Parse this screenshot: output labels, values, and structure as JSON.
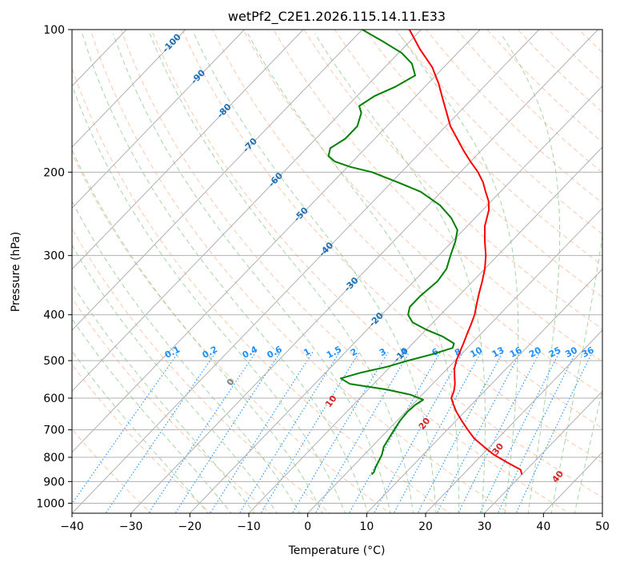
{
  "chart_data": {
    "type": "skew-t",
    "title": "wetPf2_C2E1.2026.115.14.11.E33",
    "xlabel": "Temperature (°C)",
    "ylabel": "Pressure (hPa)",
    "xlim": [
      -40,
      50
    ],
    "ylim": [
      1050,
      100
    ],
    "x_ticks": [
      -40,
      -30,
      -20,
      -10,
      0,
      10,
      20,
      30,
      40,
      50
    ],
    "y_ticks": [
      100,
      200,
      300,
      400,
      500,
      600,
      700,
      800,
      900,
      1000
    ],
    "colors": {
      "temperature": "#ff0000",
      "dewpoint": "#008000",
      "isotherm_label": "#1f6fb4",
      "mixing_ratio": "#1e90ff",
      "moist_label": "#d62728",
      "moist_zero": "#7f7f7f",
      "dry_adiabat": "#ff9966",
      "moist_adiabat": "#88c888",
      "grid": "#b0b0b0"
    },
    "isotherm_labels": [
      "-100",
      "-90",
      "-80",
      "-70",
      "-60",
      "-50",
      "-40",
      "-30",
      "-20",
      "-10"
    ],
    "isotherm_values": [
      -100,
      -90,
      -80,
      -70,
      -60,
      -50,
      -40,
      -30,
      -20,
      -10
    ],
    "mixing_ratio_labels": [
      "0.1",
      "0.2",
      "0.4",
      "0.6",
      "1",
      "1.5",
      "2",
      "3",
      "4",
      "6",
      "8",
      "10",
      "13",
      "16",
      "20",
      "25",
      "30",
      "36"
    ],
    "mixing_ratio_values": [
      0.1,
      0.2,
      0.4,
      0.6,
      1,
      1.5,
      2,
      3,
      4,
      6,
      8,
      10,
      13,
      16,
      20,
      25,
      30,
      36
    ],
    "moist_adiabat_labels": [
      "0",
      "10",
      "20",
      "30",
      "40"
    ],
    "moist_adiabat_values": [
      0,
      10,
      20,
      30,
      40
    ],
    "series": [
      {
        "name": "Temperature",
        "points": [
          [
            870,
            30.0
          ],
          [
            850,
            29.0
          ],
          [
            820,
            25.5
          ],
          [
            790,
            22.0
          ],
          [
            760,
            19.0
          ],
          [
            730,
            16.0
          ],
          [
            700,
            13.5
          ],
          [
            670,
            11.0
          ],
          [
            640,
            8.5
          ],
          [
            620,
            7.0
          ],
          [
            600,
            5.5
          ],
          [
            580,
            4.8
          ],
          [
            560,
            3.8
          ],
          [
            540,
            2.5
          ],
          [
            520,
            1.2
          ],
          [
            500,
            0.2
          ],
          [
            480,
            -0.6
          ],
          [
            460,
            -1.4
          ],
          [
            440,
            -2.3
          ],
          [
            420,
            -3.2
          ],
          [
            400,
            -4.2
          ],
          [
            380,
            -5.6
          ],
          [
            360,
            -7.0
          ],
          [
            340,
            -8.4
          ],
          [
            320,
            -10.0
          ],
          [
            300,
            -12.0
          ],
          [
            280,
            -14.5
          ],
          [
            260,
            -17.0
          ],
          [
            240,
            -19.0
          ],
          [
            230,
            -20.5
          ],
          [
            220,
            -22.5
          ],
          [
            210,
            -24.5
          ],
          [
            200,
            -27.0
          ],
          [
            190,
            -30.0
          ],
          [
            180,
            -33.0
          ],
          [
            170,
            -36.0
          ],
          [
            160,
            -39.2
          ],
          [
            150,
            -42.0
          ],
          [
            140,
            -45.0
          ],
          [
            130,
            -48.2
          ],
          [
            120,
            -52.0
          ],
          [
            110,
            -57.0
          ],
          [
            100,
            -62.0
          ]
        ]
      },
      {
        "name": "Dewpoint",
        "points": [
          [
            870,
            4.5
          ],
          [
            860,
            4.5
          ],
          [
            840,
            4.0
          ],
          [
            820,
            3.6
          ],
          [
            790,
            3.0
          ],
          [
            760,
            2.0
          ],
          [
            730,
            1.5
          ],
          [
            700,
            1.0
          ],
          [
            670,
            0.5
          ],
          [
            640,
            0.3
          ],
          [
            620,
            0.5
          ],
          [
            605,
            1.0
          ],
          [
            590,
            -2.0
          ],
          [
            575,
            -7.0
          ],
          [
            560,
            -14.0
          ],
          [
            545,
            -16.5
          ],
          [
            530,
            -14.0
          ],
          [
            515,
            -10.5
          ],
          [
            500,
            -8.0
          ],
          [
            485,
            -5.0
          ],
          [
            470,
            -2.5
          ],
          [
            460,
            -3.0
          ],
          [
            445,
            -6.0
          ],
          [
            430,
            -10.0
          ],
          [
            415,
            -13.5
          ],
          [
            400,
            -15.5
          ],
          [
            385,
            -16.5
          ],
          [
            365,
            -16.5
          ],
          [
            340,
            -16.0
          ],
          [
            320,
            -16.5
          ],
          [
            300,
            -18.0
          ],
          [
            280,
            -19.5
          ],
          [
            265,
            -21.0
          ],
          [
            250,
            -24.0
          ],
          [
            235,
            -28.0
          ],
          [
            220,
            -33.5
          ],
          [
            210,
            -39.0
          ],
          [
            200,
            -45.0
          ],
          [
            195,
            -49.5
          ],
          [
            190,
            -53.0
          ],
          [
            185,
            -55.0
          ],
          [
            178,
            -56.0
          ],
          [
            170,
            -55.0
          ],
          [
            160,
            -55.0
          ],
          [
            150,
            -56.5
          ],
          [
            145,
            -58.0
          ],
          [
            138,
            -57.0
          ],
          [
            132,
            -55.0
          ],
          [
            125,
            -53.5
          ],
          [
            118,
            -56.0
          ],
          [
            112,
            -59.5
          ],
          [
            106,
            -64.5
          ],
          [
            100,
            -70.0
          ]
        ]
      }
    ]
  }
}
